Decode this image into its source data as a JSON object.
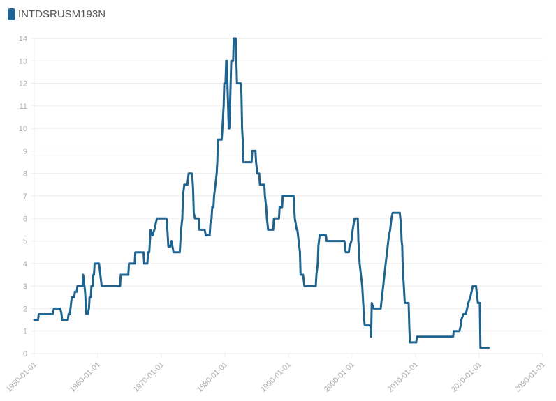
{
  "legend": {
    "label": "INTDSRUSM193N",
    "color": "#1f6391"
  },
  "chart_data": {
    "type": "line",
    "title": "",
    "xlabel": "",
    "ylabel": "",
    "series": [
      {
        "name": "INTDSRUSM193N",
        "color": "#1f6391",
        "points": [
          [
            1950.0,
            1.5
          ],
          [
            1950.6,
            1.5
          ],
          [
            1950.7,
            1.75
          ],
          [
            1952.9,
            1.75
          ],
          [
            1953.1,
            2.0
          ],
          [
            1954.1,
            2.0
          ],
          [
            1954.3,
            1.75
          ],
          [
            1954.4,
            1.5
          ],
          [
            1955.3,
            1.5
          ],
          [
            1955.4,
            1.75
          ],
          [
            1955.6,
            1.75
          ],
          [
            1955.7,
            2.0
          ],
          [
            1955.8,
            2.25
          ],
          [
            1955.9,
            2.5
          ],
          [
            1956.3,
            2.5
          ],
          [
            1956.4,
            2.75
          ],
          [
            1956.7,
            2.75
          ],
          [
            1956.8,
            3.0
          ],
          [
            1957.6,
            3.0
          ],
          [
            1957.7,
            3.5
          ],
          [
            1957.9,
            3.0
          ],
          [
            1958.0,
            2.75
          ],
          [
            1958.1,
            2.25
          ],
          [
            1958.2,
            1.75
          ],
          [
            1958.4,
            1.75
          ],
          [
            1958.6,
            2.0
          ],
          [
            1958.7,
            2.5
          ],
          [
            1958.9,
            2.5
          ],
          [
            1959.0,
            3.0
          ],
          [
            1959.2,
            3.0
          ],
          [
            1959.3,
            3.5
          ],
          [
            1959.4,
            3.5
          ],
          [
            1959.5,
            4.0
          ],
          [
            1960.2,
            4.0
          ],
          [
            1960.4,
            3.5
          ],
          [
            1960.6,
            3.0
          ],
          [
            1963.5,
            3.0
          ],
          [
            1963.6,
            3.5
          ],
          [
            1964.8,
            3.5
          ],
          [
            1964.9,
            4.0
          ],
          [
            1965.8,
            4.0
          ],
          [
            1965.9,
            4.5
          ],
          [
            1967.2,
            4.5
          ],
          [
            1967.3,
            4.0
          ],
          [
            1967.8,
            4.0
          ],
          [
            1967.9,
            4.5
          ],
          [
            1968.1,
            4.5
          ],
          [
            1968.2,
            5.0
          ],
          [
            1968.3,
            5.5
          ],
          [
            1968.6,
            5.25
          ],
          [
            1968.9,
            5.5
          ],
          [
            1969.3,
            6.0
          ],
          [
            1970.8,
            6.0
          ],
          [
            1970.9,
            5.75
          ],
          [
            1971.0,
            5.25
          ],
          [
            1971.1,
            4.75
          ],
          [
            1971.4,
            4.75
          ],
          [
            1971.6,
            5.0
          ],
          [
            1971.9,
            4.5
          ],
          [
            1972.9,
            4.5
          ],
          [
            1973.1,
            5.5
          ],
          [
            1973.3,
            6.0
          ],
          [
            1973.4,
            7.0
          ],
          [
            1973.6,
            7.5
          ],
          [
            1974.1,
            7.5
          ],
          [
            1974.3,
            8.0
          ],
          [
            1974.8,
            8.0
          ],
          [
            1974.9,
            7.75
          ],
          [
            1975.0,
            7.25
          ],
          [
            1975.1,
            6.25
          ],
          [
            1975.3,
            6.0
          ],
          [
            1975.9,
            6.0
          ],
          [
            1976.0,
            5.5
          ],
          [
            1976.8,
            5.5
          ],
          [
            1977.0,
            5.25
          ],
          [
            1977.6,
            5.25
          ],
          [
            1977.7,
            5.75
          ],
          [
            1977.9,
            6.0
          ],
          [
            1978.0,
            6.5
          ],
          [
            1978.2,
            6.5
          ],
          [
            1978.3,
            7.0
          ],
          [
            1978.5,
            7.5
          ],
          [
            1978.7,
            8.0
          ],
          [
            1978.8,
            8.5
          ],
          [
            1978.9,
            9.5
          ],
          [
            1979.5,
            9.5
          ],
          [
            1979.6,
            10.0
          ],
          [
            1979.7,
            10.5
          ],
          [
            1979.8,
            11.0
          ],
          [
            1979.9,
            12.0
          ],
          [
            1980.1,
            12.0
          ],
          [
            1980.2,
            13.0
          ],
          [
            1980.3,
            13.0
          ],
          [
            1980.4,
            12.0
          ],
          [
            1980.5,
            11.0
          ],
          [
            1980.6,
            10.0
          ],
          [
            1980.7,
            10.0
          ],
          [
            1980.8,
            11.0
          ],
          [
            1980.9,
            12.0
          ],
          [
            1981.0,
            13.0
          ],
          [
            1981.3,
            13.0
          ],
          [
            1981.4,
            14.0
          ],
          [
            1981.7,
            14.0
          ],
          [
            1981.8,
            13.0
          ],
          [
            1981.9,
            12.0
          ],
          [
            1982.5,
            12.0
          ],
          [
            1982.6,
            11.5
          ],
          [
            1982.7,
            10.0
          ],
          [
            1982.8,
            9.5
          ],
          [
            1982.9,
            8.5
          ],
          [
            1984.2,
            8.5
          ],
          [
            1984.3,
            9.0
          ],
          [
            1984.8,
            9.0
          ],
          [
            1984.9,
            8.5
          ],
          [
            1985.1,
            8.0
          ],
          [
            1985.4,
            8.0
          ],
          [
            1985.5,
            7.5
          ],
          [
            1986.2,
            7.5
          ],
          [
            1986.3,
            7.0
          ],
          [
            1986.5,
            6.5
          ],
          [
            1986.6,
            6.0
          ],
          [
            1986.8,
            5.5
          ],
          [
            1987.6,
            5.5
          ],
          [
            1987.7,
            6.0
          ],
          [
            1988.5,
            6.0
          ],
          [
            1988.6,
            6.5
          ],
          [
            1989.0,
            6.5
          ],
          [
            1989.1,
            7.0
          ],
          [
            1990.8,
            7.0
          ],
          [
            1990.9,
            6.5
          ],
          [
            1991.0,
            6.0
          ],
          [
            1991.3,
            5.5
          ],
          [
            1991.4,
            5.5
          ],
          [
            1991.6,
            5.0
          ],
          [
            1991.8,
            4.5
          ],
          [
            1991.9,
            3.5
          ],
          [
            1992.3,
            3.5
          ],
          [
            1992.5,
            3.0
          ],
          [
            1994.3,
            3.0
          ],
          [
            1994.4,
            3.5
          ],
          [
            1994.6,
            4.0
          ],
          [
            1994.7,
            4.75
          ],
          [
            1994.9,
            5.25
          ],
          [
            1995.9,
            5.25
          ],
          [
            1996.0,
            5.0
          ],
          [
            1998.8,
            5.0
          ],
          [
            1998.9,
            4.75
          ],
          [
            1999.0,
            4.5
          ],
          [
            1999.5,
            4.5
          ],
          [
            1999.6,
            4.75
          ],
          [
            1999.9,
            5.0
          ],
          [
            2000.1,
            5.5
          ],
          [
            2000.4,
            6.0
          ],
          [
            2000.9,
            6.0
          ],
          [
            2001.0,
            5.0
          ],
          [
            2001.2,
            4.0
          ],
          [
            2001.4,
            3.5
          ],
          [
            2001.6,
            3.0
          ],
          [
            2001.8,
            2.0
          ],
          [
            2001.9,
            1.5
          ],
          [
            2002.0,
            1.25
          ],
          [
            2002.9,
            1.25
          ],
          [
            2003.0,
            0.75
          ],
          [
            2003.1,
            2.25
          ],
          [
            2003.4,
            2.0
          ],
          [
            2004.5,
            2.0
          ],
          [
            2004.6,
            2.25
          ],
          [
            2004.8,
            2.75
          ],
          [
            2005.0,
            3.25
          ],
          [
            2005.2,
            3.75
          ],
          [
            2005.4,
            4.25
          ],
          [
            2005.6,
            4.75
          ],
          [
            2005.8,
            5.25
          ],
          [
            2006.0,
            5.5
          ],
          [
            2006.2,
            6.0
          ],
          [
            2006.4,
            6.25
          ],
          [
            2007.5,
            6.25
          ],
          [
            2007.7,
            5.75
          ],
          [
            2007.8,
            5.0
          ],
          [
            2007.9,
            4.75
          ],
          [
            2008.0,
            3.5
          ],
          [
            2008.1,
            3.25
          ],
          [
            2008.3,
            2.25
          ],
          [
            2008.9,
            2.25
          ],
          [
            2009.0,
            1.25
          ],
          [
            2009.1,
            0.5
          ],
          [
            2010.1,
            0.5
          ],
          [
            2010.2,
            0.75
          ],
          [
            2015.9,
            0.75
          ],
          [
            2016.0,
            1.0
          ],
          [
            2016.9,
            1.0
          ],
          [
            2017.1,
            1.25
          ],
          [
            2017.2,
            1.5
          ],
          [
            2017.5,
            1.75
          ],
          [
            2017.9,
            1.75
          ],
          [
            2018.1,
            2.0
          ],
          [
            2018.3,
            2.25
          ],
          [
            2018.6,
            2.5
          ],
          [
            2018.8,
            2.75
          ],
          [
            2019.0,
            3.0
          ],
          [
            2019.5,
            3.0
          ],
          [
            2019.7,
            2.5
          ],
          [
            2019.8,
            2.25
          ],
          [
            2020.1,
            2.25
          ],
          [
            2020.2,
            0.25
          ],
          [
            2021.5,
            0.25
          ]
        ]
      }
    ],
    "x_tick_labels": [
      "1950-01-01",
      "1960-01-01",
      "1970-01-01",
      "1980-01-01",
      "1990-01-01",
      "2000-01-01",
      "2010-01-01",
      "2020-01-01",
      "2030-01-01"
    ],
    "x_tick_values": [
      1950,
      1960,
      1970,
      1980,
      1990,
      2000,
      2010,
      2020,
      2030
    ],
    "y_tick_labels": [
      "0",
      "1",
      "2",
      "3",
      "4",
      "5",
      "6",
      "7",
      "8",
      "9",
      "10",
      "11",
      "12",
      "13",
      "14"
    ],
    "xlim": [
      1950,
      2030
    ],
    "ylim": [
      0,
      14
    ],
    "grid": true,
    "legend_position": "top-left"
  }
}
